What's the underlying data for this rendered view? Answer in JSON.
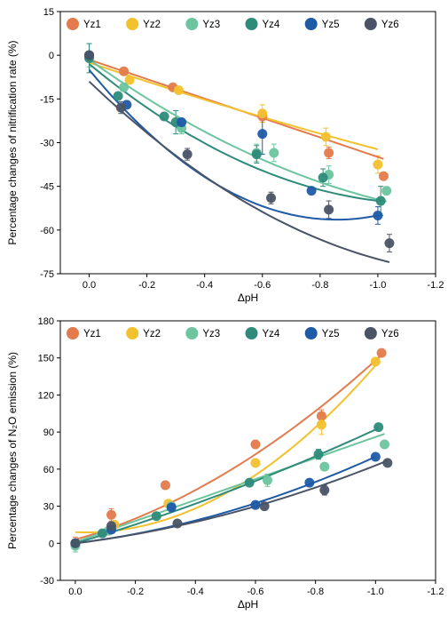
{
  "colors": {
    "Yz1": "#E37B4C",
    "Yz2": "#F2C12E",
    "Yz3": "#6CC59E",
    "Yz4": "#2E8B7A",
    "Yz5": "#1F5AA6",
    "Yz6": "#4A5466"
  },
  "chart_data": [
    {
      "type": "scatter",
      "ylabel": "Percentage changes of nitrification rate (%)",
      "xlabel": "ΔpH",
      "xlim": [
        0.1,
        -1.2
      ],
      "ylim": [
        -75,
        15
      ],
      "xticks": [
        0.0,
        -0.2,
        -0.4,
        -0.6,
        -0.8,
        -1.0,
        -1.2
      ],
      "xtick_labels": [
        "0.0",
        "-0.2",
        "-0.4",
        "-0.6",
        "-0.8",
        "-1.0",
        "-1.2"
      ],
      "yticks": [
        15,
        0,
        -15,
        -30,
        -45,
        -60,
        -75
      ],
      "ytick_labels": [
        "15",
        "0",
        "-15",
        "-30",
        "-45",
        "-60",
        "-75"
      ],
      "legend_position": "top",
      "series": [
        {
          "name": "Yz1",
          "color_key": "Yz1",
          "points": [
            [
              0.0,
              0
            ],
            [
              -0.12,
              -5.5
            ],
            [
              -0.29,
              -11
            ],
            [
              -0.6,
              -21
            ],
            [
              -0.83,
              -33.5
            ],
            [
              -1.02,
              -41.5
            ]
          ],
          "err": [
            0,
            0,
            0,
            2,
            2,
            0
          ],
          "fit": [
            -1.5,
            33.4,
            0
          ]
        },
        {
          "name": "Yz2",
          "color_key": "Yz2",
          "points": [
            [
              0.0,
              0
            ],
            [
              -0.14,
              -8.5
            ],
            [
              -0.31,
              -12
            ],
            [
              -0.6,
              -20
            ],
            [
              -0.82,
              -28
            ],
            [
              -1.0,
              -37.5
            ]
          ],
          "err": [
            0,
            0,
            0,
            3,
            3,
            3
          ],
          "fit": [
            -2.5,
            33.3,
            3.5
          ]
        },
        {
          "name": "Yz3",
          "color_key": "Yz3",
          "points": [
            [
              0.0,
              0
            ],
            [
              -0.12,
              -11
            ],
            [
              -0.32,
              -25
            ],
            [
              -0.58,
              -33.5
            ],
            [
              -0.64,
              -33.5
            ],
            [
              -0.83,
              -41
            ],
            [
              -1.03,
              -46.5
            ]
          ],
          "err": [
            4,
            0,
            2,
            3,
            3,
            3,
            0
          ],
          "fit": [
            -1.5,
            71,
            23
          ]
        },
        {
          "name": "Yz4",
          "color_key": "Yz4",
          "points": [
            [
              0.0,
              -1
            ],
            [
              -0.1,
              -14
            ],
            [
              -0.26,
              -21
            ],
            [
              -0.3,
              -23
            ],
            [
              -0.58,
              -34
            ],
            [
              -0.81,
              -42
            ],
            [
              -1.01,
              -50
            ]
          ],
          "err": [
            5,
            0,
            0,
            4,
            3,
            3,
            5
          ],
          "fit": [
            -3,
            82,
            35
          ]
        },
        {
          "name": "Yz5",
          "color_key": "Yz5",
          "points": [
            [
              0.0,
              0
            ],
            [
              -0.13,
              -17
            ],
            [
              -0.32,
              -23
            ],
            [
              -0.6,
              -27
            ],
            [
              -0.77,
              -46.5
            ],
            [
              -1.0,
              -55
            ]
          ],
          "err": [
            0,
            0,
            0,
            7,
            0,
            3
          ],
          "fit": [
            -5,
            120,
            70
          ]
        },
        {
          "name": "Yz6",
          "color_key": "Yz6",
          "points": [
            [
              0.0,
              0
            ],
            [
              -0.11,
              -18
            ],
            [
              -0.34,
              -34
            ],
            [
              -0.63,
              -49
            ],
            [
              -0.83,
              -53
            ],
            [
              -1.04,
              -64.5
            ]
          ],
          "err": [
            0,
            2,
            2,
            2,
            3,
            3
          ],
          "fit": [
            -9,
            95,
            34
          ]
        }
      ]
    },
    {
      "type": "scatter",
      "ylabel": "Percentage changes of N₂O emission (%)",
      "xlabel": "ΔpH",
      "xlim": [
        0.05,
        -1.2
      ],
      "ylim": [
        -30,
        180
      ],
      "xticks": [
        0.0,
        -0.2,
        -0.4,
        -0.6,
        -0.8,
        -1.0,
        -1.2
      ],
      "xtick_labels": [
        "0.0",
        "-0.2",
        "-0.4",
        "-0.6",
        "-0.8",
        "-1.0",
        "-1.2"
      ],
      "yticks": [
        180,
        150,
        120,
        90,
        60,
        30,
        0,
        -30
      ],
      "ytick_labels": [
        "180",
        "150",
        "120",
        "90",
        "60",
        "30",
        "0",
        "-30"
      ],
      "legend_position": "top",
      "series": [
        {
          "name": "Yz1",
          "color_key": "Yz1",
          "points": [
            [
              0.0,
              0
            ],
            [
              -0.12,
              23
            ],
            [
              -0.3,
              47
            ],
            [
              -0.6,
              80
            ],
            [
              -0.82,
              103
            ],
            [
              -1.02,
              154
            ]
          ],
          "err": [
            5,
            5,
            0,
            0,
            5,
            0
          ],
          "fit": [
            3,
            70,
            75
          ]
        },
        {
          "name": "Yz2",
          "color_key": "Yz2",
          "points": [
            [
              0.0,
              0
            ],
            [
              -0.13,
              15
            ],
            [
              -0.31,
              32
            ],
            [
              -0.6,
              65
            ],
            [
              -0.82,
              96
            ],
            [
              -1.0,
              147
            ]
          ],
          "err": [
            0,
            0,
            3,
            0,
            8,
            0
          ],
          "fit": [
            9,
            -10,
            145
          ]
        },
        {
          "name": "Yz3",
          "color_key": "Yz3",
          "points": [
            [
              0.0,
              -2
            ],
            [
              -0.11,
              10
            ],
            [
              -0.32,
              30
            ],
            [
              -0.64,
              51
            ],
            [
              -0.83,
              62
            ],
            [
              -1.03,
              80
            ]
          ],
          "err": [
            5,
            0,
            0,
            5,
            0,
            0
          ],
          "fit": [
            1,
            85,
            0
          ]
        },
        {
          "name": "Yz4",
          "color_key": "Yz4",
          "points": [
            [
              0.0,
              0
            ],
            [
              -0.09,
              8
            ],
            [
              -0.27,
              22
            ],
            [
              -0.58,
              49
            ],
            [
              -0.81,
              72
            ],
            [
              -1.01,
              94
            ]
          ],
          "err": [
            0,
            0,
            0,
            0,
            4,
            0
          ],
          "fit": [
            0,
            72,
            20
          ]
        },
        {
          "name": "Yz5",
          "color_key": "Yz5",
          "points": [
            [
              0.0,
              0
            ],
            [
              -0.12,
              11
            ],
            [
              -0.32,
              29
            ],
            [
              -0.6,
              31
            ],
            [
              -0.78,
              49
            ],
            [
              -1.0,
              70
            ]
          ],
          "err": [
            0,
            0,
            0,
            0,
            0,
            0
          ],
          "fit": [
            0,
            30,
            40
          ]
        },
        {
          "name": "Yz6",
          "color_key": "Yz6",
          "points": [
            [
              0.0,
              0
            ],
            [
              -0.12,
              14
            ],
            [
              -0.34,
              16
            ],
            [
              -0.63,
              30
            ],
            [
              -0.83,
              43
            ],
            [
              -1.04,
              65
            ]
          ],
          "err": [
            0,
            0,
            0,
            0,
            4,
            0
          ],
          "fit": [
            0,
            30,
            33
          ]
        }
      ]
    }
  ]
}
